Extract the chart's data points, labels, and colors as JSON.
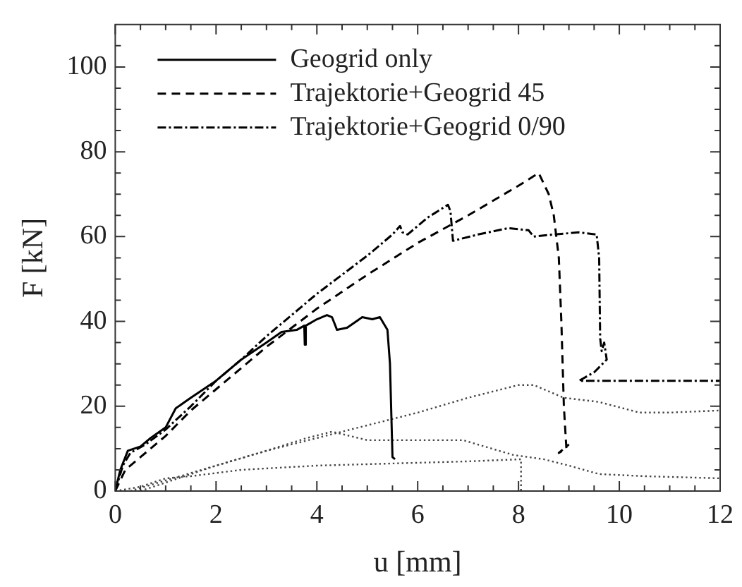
{
  "chart_data": {
    "type": "line",
    "xlabel": "u [mm]",
    "ylabel": "F [kN]",
    "xlim": [
      0,
      12
    ],
    "ylim": [
      0,
      110
    ],
    "xticks": [
      0,
      {
        "value": 0.5,
        "label": null
      },
      {
        "value": 1,
        "label": null
      },
      {
        "value": 1.5,
        "label": null
      },
      2,
      {
        "value": 2.5,
        "label": null
      },
      {
        "value": 3,
        "label": null
      },
      {
        "value": 3.5,
        "label": null
      },
      4,
      {
        "value": 4.5,
        "label": null
      },
      {
        "value": 5,
        "label": null
      },
      {
        "value": 5.5,
        "label": null
      },
      6,
      {
        "value": 6.5,
        "label": null
      },
      {
        "value": 7,
        "label": null
      },
      {
        "value": 7.5,
        "label": null
      },
      8,
      {
        "value": 8.5,
        "label": null
      },
      {
        "value": 9,
        "label": null
      },
      {
        "value": 9.5,
        "label": null
      },
      10,
      {
        "value": 10.5,
        "label": null
      },
      {
        "value": 11,
        "label": null
      },
      {
        "value": 11.5,
        "label": null
      },
      12
    ],
    "yticks": [
      0,
      {
        "value": 5,
        "label": null
      },
      {
        "value": 10,
        "label": null
      },
      {
        "value": 15,
        "label": null
      },
      20,
      {
        "value": 25,
        "label": null
      },
      {
        "value": 30,
        "label": null
      },
      {
        "value": 35,
        "label": null
      },
      40,
      {
        "value": 45,
        "label": null
      },
      {
        "value": 50,
        "label": null
      },
      {
        "value": 55,
        "label": null
      },
      60,
      {
        "value": 65,
        "label": null
      },
      {
        "value": 70,
        "label": null
      },
      {
        "value": 75,
        "label": null
      },
      80,
      {
        "value": 85,
        "label": null
      },
      {
        "value": 90,
        "label": null
      },
      {
        "value": 95,
        "label": null
      },
      100,
      {
        "value": 105,
        "label": null
      }
    ],
    "grid": false,
    "legend": "top left",
    "marker": "none",
    "series": [
      {
        "name": "Geogrid only",
        "color": "#000000",
        "line_style": "solid",
        "x": [
          0,
          0.1,
          0.25,
          0.5,
          0.7,
          1,
          1.2,
          1.5,
          2,
          2.5,
          3,
          3.3,
          3.6,
          3.75,
          3.76,
          3.78,
          4,
          4.2,
          4.3,
          4.4,
          4.6,
          4.9,
          5.1,
          5.25,
          5.4,
          5.45,
          5.5,
          5.55
        ],
        "values": [
          0,
          5,
          9.5,
          10.5,
          12.5,
          15,
          19.5,
          22,
          26,
          31,
          35,
          37.5,
          38,
          39,
          34.5,
          39,
          40.5,
          41.5,
          41,
          38,
          38.5,
          41,
          40.5,
          41,
          38,
          30,
          8,
          7.5
        ]
      },
      {
        "name": "Trajektorie+Geogrid 45",
        "color": "#000000",
        "line_style": "dashed",
        "x": [
          0,
          0.2,
          0.5,
          1,
          1.5,
          2,
          2.5,
          3,
          4,
          5,
          6,
          7,
          8,
          8.4,
          8.6,
          8.7,
          8.8,
          8.85,
          8.9,
          8.95,
          8.8,
          9
        ],
        "values": [
          0,
          5,
          8,
          13,
          19,
          24,
          29,
          34,
          43,
          51,
          58.5,
          65,
          72,
          75,
          70,
          65,
          55,
          40,
          20,
          10,
          9,
          11
        ]
      },
      {
        "name": "Trajektorie+Geogrid 0/90",
        "color": "#000000",
        "line_style": "dashdot",
        "x": [
          0,
          0.15,
          0.3,
          0.6,
          1,
          1.5,
          2,
          2.5,
          3,
          3.5,
          4,
          4.5,
          5,
          5.5,
          5.65,
          5.7,
          5.8,
          6.2,
          6.6,
          6.65,
          6.7,
          6.8,
          7.2,
          7.8,
          8.2,
          8.3,
          8.7,
          9.2,
          9.55,
          9.6,
          9.62,
          9.65,
          9.7,
          9.75,
          9.5,
          9.2,
          12
        ],
        "values": [
          0,
          6,
          9,
          11,
          14.5,
          20,
          26,
          31,
          36.5,
          41.5,
          46.5,
          51,
          55.5,
          60.5,
          62.5,
          61,
          60.5,
          64.5,
          67.5,
          66,
          59,
          59.3,
          60.5,
          62,
          61.5,
          60,
          60.5,
          61,
          60.5,
          55,
          36,
          33,
          35,
          31,
          28,
          26,
          26
        ]
      },
      {
        "color": "#444444",
        "line_style": "dotted",
        "x": [
          0.3,
          1,
          2,
          3,
          4,
          5,
          6,
          7,
          8,
          8.3,
          8.9,
          9.6,
          10.4,
          11,
          12
        ],
        "values": [
          0,
          2.5,
          6,
          9.5,
          12.5,
          15.5,
          18.5,
          22,
          25,
          25,
          22,
          21,
          18.5,
          18.5,
          19
        ]
      },
      {
        "color": "#444444",
        "line_style": "dotted",
        "x": [
          0.5,
          1,
          2,
          3,
          3.8,
          4.3,
          5,
          6,
          6.9,
          7.9,
          8.5,
          9,
          9.6,
          10.5,
          12
        ],
        "values": [
          0,
          2,
          6,
          9.5,
          12.5,
          14,
          12,
          12,
          12,
          8.5,
          7.5,
          6,
          4,
          3.5,
          3
        ]
      },
      {
        "color": "#444444",
        "line_style": "dotted",
        "x": [
          0,
          0.5,
          1,
          1.5,
          2.5,
          4,
          5.5,
          7,
          8.05,
          8.05
        ],
        "values": [
          0,
          1,
          3,
          3.5,
          5,
          6,
          6.5,
          7,
          7.5,
          0
        ]
      }
    ]
  }
}
